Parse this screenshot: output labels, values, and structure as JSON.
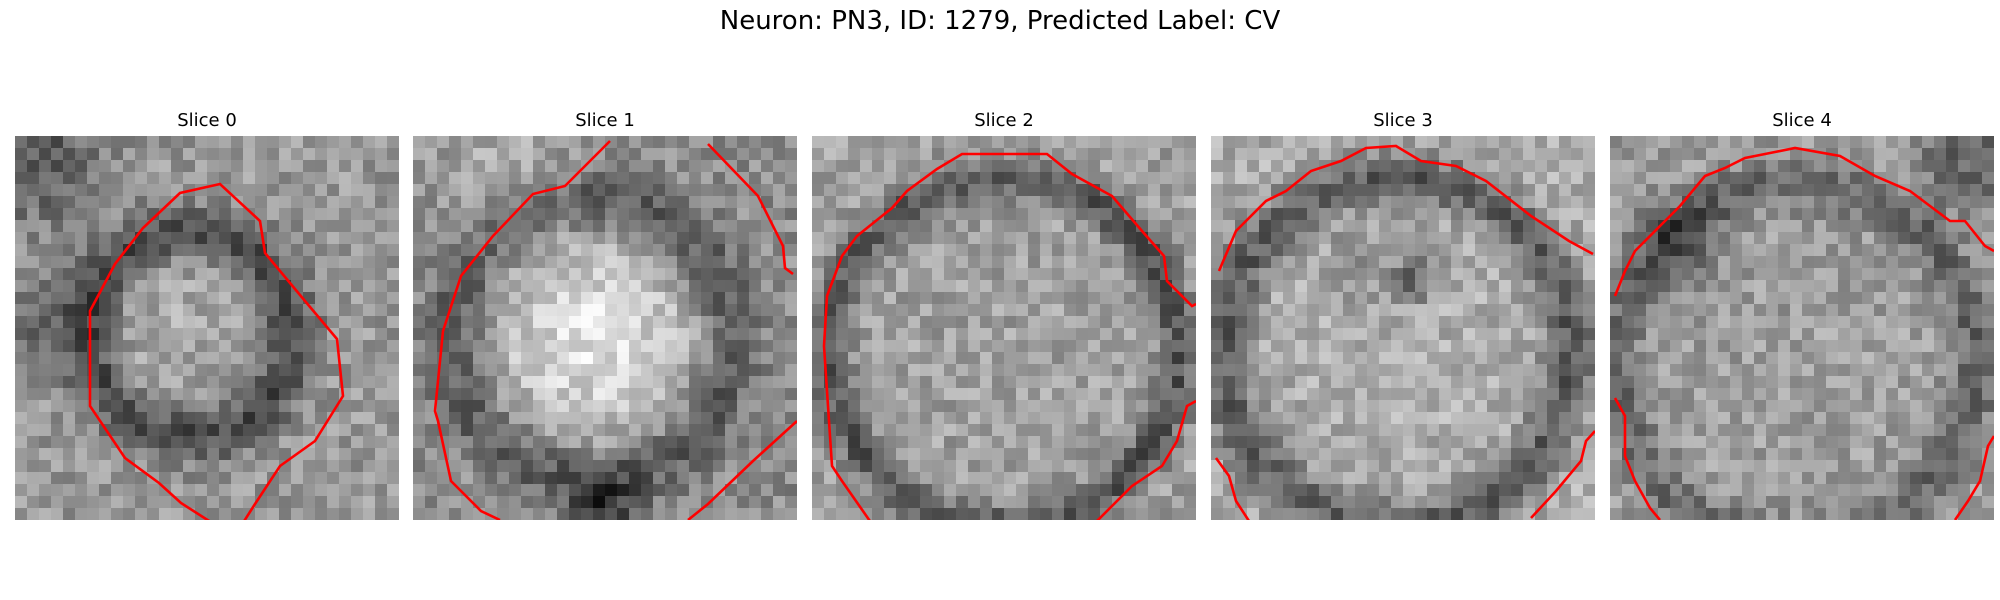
{
  "figure": {
    "title": "Neuron: PN3, ID: 1279, Predicted Label: CV"
  },
  "panels": [
    {
      "title": "Slice 0",
      "image": "grayscale-em-patch-slice-0",
      "contour_color": "#ff0000"
    },
    {
      "title": "Slice 1",
      "image": "grayscale-em-patch-slice-1",
      "contour_color": "#ff0000"
    },
    {
      "title": "Slice 2",
      "image": "grayscale-em-patch-slice-2",
      "contour_color": "#ff0000"
    },
    {
      "title": "Slice 3",
      "image": "grayscale-em-patch-slice-3",
      "contour_color": "#ff0000"
    },
    {
      "title": "Slice 4",
      "image": "grayscale-em-patch-slice-4",
      "contour_color": "#ff0000"
    }
  ]
}
